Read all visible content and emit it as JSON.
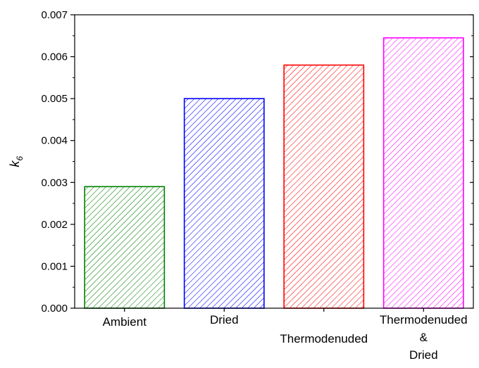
{
  "chart_data": {
    "type": "bar",
    "categories": [
      "Ambient",
      "Dried",
      "Thermodenuded",
      "Thermodenuded & Dried"
    ],
    "category_label_lines": [
      [
        "Ambient"
      ],
      [
        "Dried"
      ],
      [
        "Thermodenuded"
      ],
      [
        "Thermodenuded",
        "&",
        "Dried"
      ]
    ],
    "values": [
      0.0029,
      0.005,
      0.0058,
      0.00645
    ],
    "colors": [
      "#008000",
      "#0000ff",
      "#ff0000",
      "#ff00ff"
    ],
    "fill_pattern": "diagonal-hatch",
    "ylabel": {
      "main": "k",
      "sub": "6"
    },
    "xlabel": "",
    "title": "",
    "ylim": [
      0,
      0.007
    ],
    "yticks": [
      "0.000",
      "0.001",
      "0.002",
      "0.003",
      "0.004",
      "0.005",
      "0.006",
      "0.007"
    ],
    "grid": false,
    "legend": "none"
  }
}
